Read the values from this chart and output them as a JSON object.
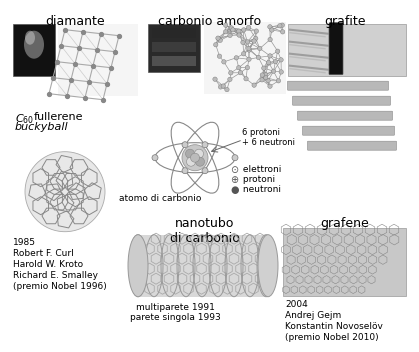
{
  "title_diamante": "diamante",
  "title_carbonio": "carbonio amorfo",
  "title_grafite": "grafite",
  "label_atomo": "atomo di carbonio",
  "label_6pn": "6 protoni\n+ 6 neutroni",
  "label_e": " elettroni",
  "label_p": " protoni",
  "label_n": " neutroni",
  "title_nanotubo": "nanotubo\ndi carbonio",
  "label_multi": "multiparete 1991\nparete singola 1993",
  "title_grafene": "grafene",
  "text_1985": "1985\nRobert F. Curl\nHarold W. Kroto\nRichard E. Smalley\n(premio Nobel 1996)",
  "text_2004": "2004\nAndrej Gejm\nKonstantin Novoselöv\n(premio Nobel 2010)",
  "sym_e": "⊙",
  "sym_p": "⊕",
  "sym_n": "○"
}
